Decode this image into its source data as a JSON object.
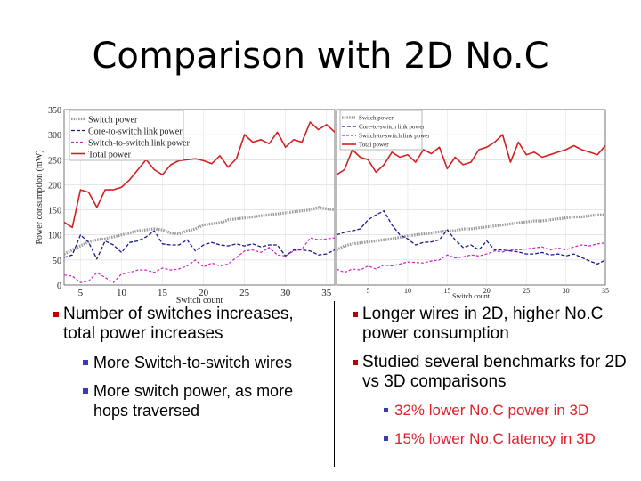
{
  "slide": {
    "title": "Comparison with 2D No.C"
  },
  "colors": {
    "switch_power": "#9a9a9a",
    "core_link": "#1a1a8c",
    "switch_link": "#d020c0",
    "total": "#d42020",
    "bullet_red": "#c00000",
    "bullet_blue": "#3b3bb8",
    "highlight": "#e0202a"
  },
  "chart_data": [
    {
      "type": "line",
      "panel": "left",
      "ylabel": "Power consumption (mW)",
      "xlabel": "Switch count",
      "ylim": [
        0,
        350
      ],
      "xlim": [
        3,
        36
      ],
      "y_ticks": [
        "0",
        "50",
        "100",
        "150",
        "200",
        "250",
        "300",
        "350"
      ],
      "x_ticks": [
        "5",
        "10",
        "15",
        "20",
        "25",
        "30",
        "35"
      ],
      "legend": "top-left",
      "x": [
        3,
        4,
        5,
        6,
        7,
        8,
        9,
        10,
        11,
        12,
        13,
        14,
        15,
        16,
        17,
        18,
        19,
        20,
        21,
        22,
        23,
        24,
        25,
        26,
        27,
        28,
        29,
        30,
        31,
        32,
        33,
        34,
        35,
        36
      ],
      "series": [
        {
          "name": "Switch power",
          "values": [
            62,
            70,
            78,
            86,
            90,
            92,
            96,
            100,
            104,
            108,
            110,
            112,
            110,
            104,
            102,
            108,
            112,
            120,
            122,
            124,
            130,
            132,
            134,
            136,
            138,
            140,
            142,
            144,
            146,
            148,
            150,
            155,
            152,
            150
          ]
        },
        {
          "name": "Core-to-switch link power",
          "values": [
            55,
            60,
            100,
            85,
            52,
            88,
            80,
            65,
            85,
            88,
            96,
            108,
            82,
            80,
            80,
            90,
            68,
            80,
            85,
            80,
            78,
            82,
            78,
            82,
            76,
            80,
            80,
            58,
            70,
            70,
            68,
            60,
            62,
            70
          ]
        },
        {
          "name": "Switch-to-switch link power",
          "values": [
            20,
            18,
            5,
            8,
            25,
            15,
            5,
            22,
            25,
            30,
            30,
            25,
            34,
            30,
            32,
            38,
            50,
            36,
            44,
            38,
            42,
            55,
            68,
            70,
            65,
            75,
            60,
            58,
            68,
            72,
            94,
            90,
            92,
            94
          ]
        },
        {
          "name": "Total power",
          "values": [
            125,
            115,
            190,
            185,
            155,
            190,
            190,
            195,
            210,
            230,
            250,
            230,
            220,
            240,
            248,
            250,
            252,
            248,
            242,
            258,
            235,
            252,
            300,
            285,
            290,
            282,
            305,
            275,
            290,
            285,
            325,
            310,
            320,
            305
          ]
        }
      ]
    },
    {
      "type": "line",
      "panel": "right",
      "xlabel": "Switch count",
      "ylim": [
        0,
        350
      ],
      "xlim": [
        1,
        35
      ],
      "x_ticks": [
        "5",
        "10",
        "15",
        "20",
        "25",
        "30",
        "35"
      ],
      "legend": "top-left",
      "x": [
        1,
        2,
        3,
        4,
        5,
        6,
        7,
        8,
        9,
        10,
        11,
        12,
        13,
        14,
        15,
        16,
        17,
        18,
        19,
        20,
        21,
        22,
        23,
        24,
        25,
        26,
        27,
        28,
        29,
        30,
        31,
        32,
        33,
        34,
        35
      ],
      "series": [
        {
          "name": "Switch power",
          "values": [
            70,
            78,
            82,
            84,
            86,
            88,
            90,
            92,
            95,
            98,
            100,
            102,
            104,
            106,
            108,
            108,
            112,
            112,
            114,
            116,
            118,
            120,
            122,
            124,
            126,
            128,
            128,
            130,
            132,
            134,
            136,
            136,
            138,
            140,
            140
          ]
        },
        {
          "name": "Core-to-switch link power",
          "values": [
            100,
            105,
            108,
            112,
            130,
            140,
            148,
            120,
            100,
            92,
            80,
            85,
            86,
            90,
            110,
            90,
            75,
            80,
            70,
            88,
            70,
            70,
            68,
            66,
            62,
            62,
            65,
            60,
            62,
            58,
            62,
            55,
            48,
            42,
            50
          ]
        },
        {
          "name": "Switch-to-switch link power",
          "values": [
            32,
            25,
            32,
            30,
            38,
            32,
            40,
            38,
            42,
            46,
            45,
            44,
            48,
            50,
            60,
            54,
            56,
            60,
            58,
            62,
            68,
            66,
            70,
            70,
            72,
            74,
            76,
            70,
            74,
            70,
            76,
            80,
            78,
            82,
            84
          ]
        },
        {
          "name": "Total power",
          "values": [
            220,
            230,
            270,
            255,
            250,
            225,
            240,
            265,
            255,
            260,
            245,
            270,
            262,
            275,
            232,
            255,
            240,
            245,
            270,
            275,
            285,
            300,
            245,
            285,
            260,
            265,
            255,
            260,
            265,
            270,
            278,
            270,
            265,
            260,
            278
          ]
        }
      ]
    }
  ],
  "chart_legend_left": [
    "Switch power",
    "Core-to-switch link power",
    "Switch-to-switch link power",
    "Total power"
  ],
  "chart_legend_right": [
    "Switch power",
    "Core-to-switch link power",
    "Switch-to-switch link power",
    "Total power"
  ],
  "bullets_left": {
    "b1": "Number of switches increases, total power increases",
    "b1a": "More Switch-to-switch wires",
    "b1b": "More switch power, as more hops traversed"
  },
  "bullets_right": {
    "b1": "Longer wires in 2D, higher No.C power consumption",
    "b2": "Studied several benchmarks for 2D vs 3D comparisons",
    "b2a": "32% lower No.C power in 3D",
    "b2b": "15% lower No.C latency in 3D"
  }
}
